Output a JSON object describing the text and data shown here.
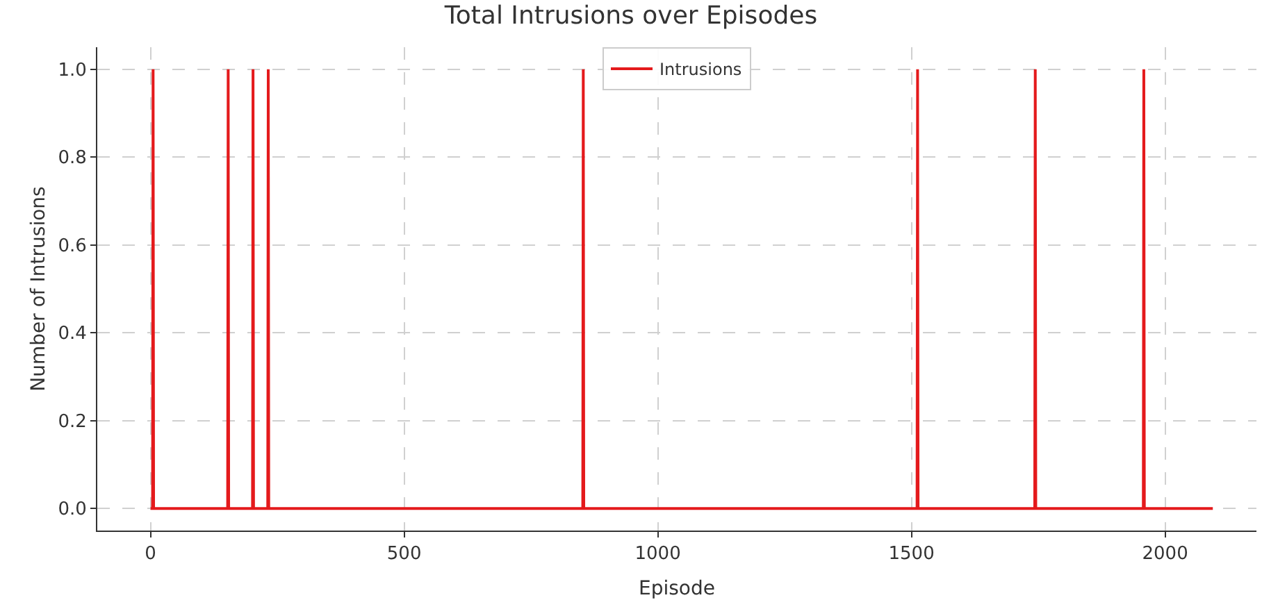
{
  "chart_data": {
    "type": "line",
    "title": "Total Intrusions over Episodes",
    "xlabel": "Episode",
    "ylabel": "Number of Intrusions",
    "series": [
      {
        "name": "Intrusions",
        "color": "#e41a1c",
        "x": [
          0,
          4,
          5,
          6,
          152,
          153,
          154,
          201,
          202,
          203,
          231,
          232,
          233,
          852,
          853,
          854,
          1511,
          1512,
          1513,
          1743,
          1744,
          1745,
          1957,
          1958,
          1959,
          2094
        ],
        "values": [
          0,
          0,
          1,
          0,
          0,
          1,
          0,
          0,
          1,
          0,
          0,
          1,
          0,
          0,
          1,
          0,
          0,
          1,
          0,
          0,
          1,
          0,
          0,
          1,
          0,
          0
        ]
      }
    ],
    "xlim": [
      -105,
      2180
    ],
    "xticks": [
      0,
      500,
      1000,
      1500,
      2000
    ],
    "ylim": [
      -0.05,
      1.05
    ],
    "yticks": [
      {
        "value": 0,
        "label": "0.0"
      },
      {
        "value": 0.2,
        "label": "0.2"
      },
      {
        "value": 0.4,
        "label": "0.4"
      },
      {
        "value": 0.6,
        "label": "0.6"
      },
      {
        "value": 0.8,
        "label": "0.8"
      },
      {
        "value": 1,
        "label": "1.0"
      }
    ],
    "grid": true,
    "legend": "top",
    "marker": "none",
    "line_style": "solid"
  }
}
